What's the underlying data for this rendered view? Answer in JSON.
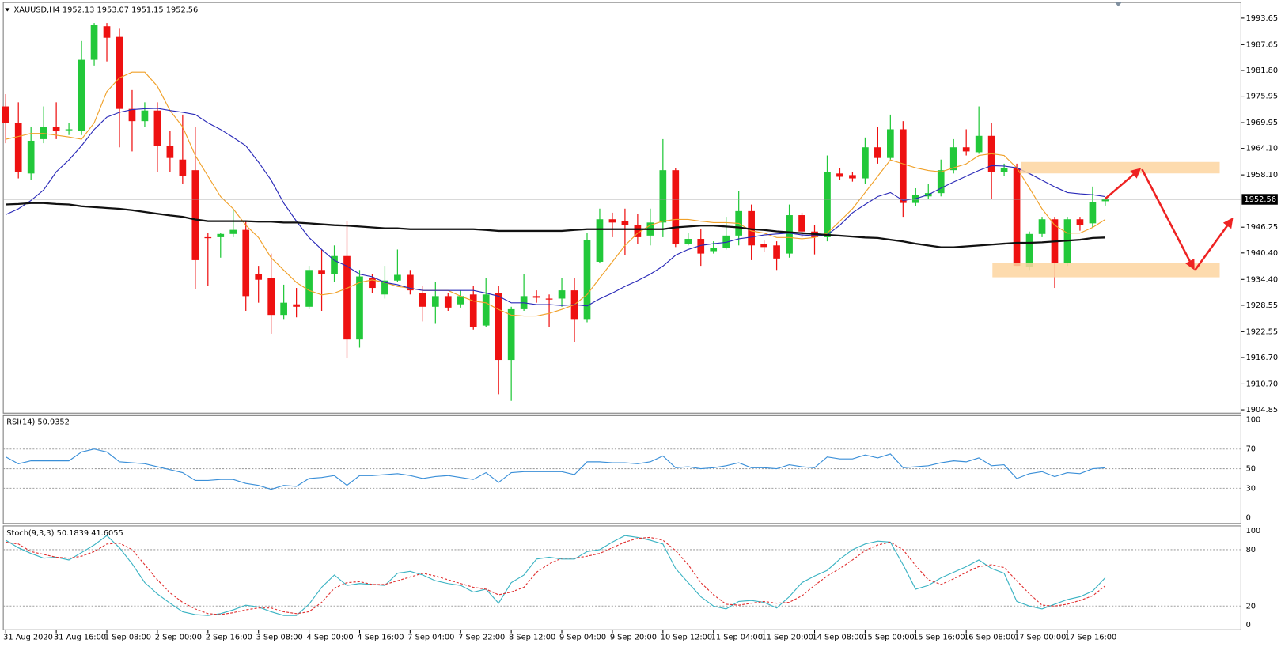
{
  "chart_data": [
    {
      "type": "candlestick",
      "symbol": "XAUUSD,H4",
      "up_color": "#22c83a",
      "down_color": "#ee1111",
      "categories": [
        "31 Aug 2020",
        null,
        null,
        null,
        "31 Aug 16:00",
        null,
        null,
        null,
        "1 Sep 08:00",
        null,
        null,
        null,
        "2 Sep 00:00",
        null,
        null,
        null,
        "2 Sep 16:00",
        null,
        null,
        null,
        "3 Sep 08:00",
        null,
        null,
        null,
        "4 Sep 00:00",
        null,
        null,
        null,
        "4 Sep 16:00",
        null,
        null,
        null,
        "7 Sep 04:00",
        null,
        null,
        null,
        "7 Sep 22:00",
        null,
        null,
        null,
        "8 Sep 12:00",
        null,
        null,
        null,
        "9 Sep 04:00",
        null,
        null,
        null,
        "9 Sep 20:00",
        null,
        null,
        null,
        "10 Sep 12:00",
        null,
        null,
        null,
        "11 Sep 04:00",
        null,
        null,
        null,
        "11 Sep 20:00",
        null,
        null,
        null,
        "14 Sep 08:00",
        null,
        null,
        null,
        "15 Sep 00:00",
        null,
        null,
        null,
        "15 Sep 16:00",
        null,
        null,
        null,
        "16 Sep 08:00",
        null,
        null,
        null,
        "17 Sep 00:00",
        null,
        null,
        null,
        "17 Sep 16:00",
        null,
        null,
        null
      ],
      "open": [
        1973.63,
        1969.92,
        1958.42,
        1966.21,
        1968.99,
        1968.44,
        1968.07,
        1984.2,
        1991.8,
        1989.39,
        1973.07,
        1970.29,
        1972.7,
        1964.73,
        1961.58,
        1959.17,
        1943.97,
        1943.97,
        1944.71,
        1945.64,
        1935.62,
        1934.7,
        1926.35,
        1928.76,
        1928.21,
        1936.55,
        1935.62,
        1939.7,
        1920.79,
        1934.7,
        1930.99,
        1934.14,
        1935.44,
        1931.36,
        1928.21,
        1930.62,
        1928.76,
        1930.99,
        1923.94,
        1931.36,
        1916.15,
        1927.65,
        1930.62,
        1930.06,
        1930.06,
        1931.92,
        1925.42,
        1938.4,
        1948.04,
        1947.67,
        1946.75,
        1944.34,
        1947.3,
        1959.17,
        1942.48,
        1943.59,
        1940.81,
        1941.55,
        1944.34,
        1949.9,
        1942.48,
        1942.11,
        1940.26,
        1948.97,
        1945.26,
        1943.97,
        1958.42,
        1958.05,
        1957.31,
        1964.36,
        1961.95,
        1968.44,
        1951.74,
        1953.23,
        1953.97,
        1959.17,
        1964.36,
        1963.25,
        1966.95,
        1958.8,
        1959.72,
        1937.29,
        1944.71,
        1948.04,
        1938.03,
        1948.04,
        1947.12,
        1952.13
      ],
      "high": [
        1976.41,
        1974.56,
        1968.99,
        1973.63,
        1974.56,
        1969.92,
        1988.46,
        1992.54,
        1992.54,
        1991.24,
        1977.34,
        1974.56,
        1974.56,
        1968.07,
        1971.77,
        1968.99,
        1944.89,
        1944.89,
        1950.45,
        1947.67,
        1937.48,
        1940.26,
        1933.21,
        1932.47,
        1937.48,
        1941.18,
        1942.11,
        1947.67,
        1936.55,
        1935.62,
        1937.48,
        1941.18,
        1936.55,
        1932.84,
        1933.77,
        1931.36,
        1931.92,
        1932.84,
        1934.7,
        1932.84,
        1928.21,
        1935.62,
        1931.92,
        1930.99,
        1934.7,
        1934.7,
        1944.89,
        1950.45,
        1949.53,
        1950.45,
        1949.16,
        1950.45,
        1966.21,
        1959.72,
        1944.89,
        1945.82,
        1943.04,
        1948.6,
        1954.53,
        1951.38,
        1943.22,
        1943.04,
        1951.38,
        1949.53,
        1946.75,
        1962.51,
        1959.72,
        1958.8,
        1966.58,
        1968.99,
        1971.77,
        1970.29,
        1955.08,
        1956.01,
        1961.58,
        1966.21,
        1968.44,
        1973.63,
        1969.92,
        1960.65,
        1960.65,
        1945.26,
        1948.6,
        1948.6,
        1948.6,
        1948.6,
        1955.46,
        1953.07
      ],
      "low": [
        1965.28,
        1957.31,
        1956.94,
        1965.28,
        1966.21,
        1967.14,
        1967.14,
        1982.9,
        1983.83,
        1964.36,
        1963.43,
        1968.99,
        1958.8,
        1958.8,
        1956.01,
        1932.29,
        1932.84,
        1939.33,
        1943.97,
        1927.28,
        1929.13,
        1922.09,
        1925.42,
        1925.8,
        1927.65,
        1927.28,
        1933.77,
        1916.53,
        1918.94,
        1931.36,
        1930.06,
        1933.77,
        1930.99,
        1924.87,
        1924.5,
        1927.28,
        1928.02,
        1923.01,
        1923.57,
        1908.37,
        1906.88,
        1927.28,
        1929.13,
        1923.57,
        1928.21,
        1920.24,
        1924.68,
        1938.03,
        1943.97,
        1939.89,
        1942.48,
        1942.11,
        1943.97,
        1941.74,
        1942.11,
        1937.48,
        1940.26,
        1941.18,
        1942.11,
        1938.77,
        1940.63,
        1936.55,
        1939.33,
        1943.97,
        1940.07,
        1943.04,
        1956.94,
        1956.57,
        1956.01,
        1960.65,
        1961.58,
        1948.6,
        1951.01,
        1952.67,
        1953.23,
        1958.42,
        1962.51,
        1962.88,
        1952.67,
        1957.87,
        1937.48,
        1936.55,
        1943.97,
        1932.47,
        1937.48,
        1945.45,
        1946.19,
        1951.15
      ],
      "close": [
        1969.92,
        1958.8,
        1965.84,
        1968.99,
        1968.07,
        1968.44,
        1984.2,
        1992.17,
        1989.2,
        1973.07,
        1970.29,
        1972.7,
        1964.73,
        1961.95,
        1957.87,
        1938.77,
        1943.78,
        1944.71,
        1945.64,
        1930.62,
        1934.32,
        1926.35,
        1929.13,
        1928.21,
        1936.55,
        1935.62,
        1939.7,
        1920.79,
        1935.07,
        1932.47,
        1934.14,
        1935.44,
        1931.92,
        1928.21,
        1930.62,
        1928.02,
        1930.62,
        1923.57,
        1930.99,
        1916.15,
        1927.65,
        1930.62,
        1930.25,
        1929.88,
        1931.92,
        1925.42,
        1943.41,
        1948.04,
        1947.3,
        1946.75,
        1943.97,
        1947.3,
        1959.17,
        1942.48,
        1943.59,
        1940.26,
        1941.55,
        1944.34,
        1949.9,
        1942.11,
        1941.74,
        1939.14,
        1948.97,
        1945.26,
        1943.97,
        1958.8,
        1957.68,
        1957.31,
        1964.36,
        1961.95,
        1968.44,
        1951.74,
        1953.6,
        1953.97,
        1959.17,
        1964.36,
        1963.43,
        1966.95,
        1958.8,
        1959.72,
        1937.48,
        1944.71,
        1948.04,
        1938.03,
        1948.04,
        1946.75,
        1951.93,
        1952.56
      ],
      "overlays": [
        {
          "color": "#f0a028",
          "values": [
            1966.2,
            1966.8,
            1967.5,
            1967.5,
            1967.1,
            1966.7,
            1966.2,
            1969.9,
            1977.0,
            1980.1,
            1981.4,
            1981.4,
            1978.2,
            1972.7,
            1969.0,
            1962.5,
            1957.8,
            1953.2,
            1950.4,
            1946.7,
            1943.9,
            1939.3,
            1936.5,
            1933.7,
            1931.9,
            1930.9,
            1931.3,
            1932.4,
            1933.7,
            1934.3,
            1933.7,
            1932.8,
            1932.4,
            1931.9,
            1931.9,
            1931.9,
            1930.6,
            1929.5,
            1929.1,
            1927.6,
            1926.3,
            1926.1,
            1926.1,
            1926.7,
            1927.6,
            1928.7,
            1931.0,
            1934.7,
            1938.4,
            1942.1,
            1944.9,
            1946.7,
            1947.6,
            1948.0,
            1948.0,
            1947.6,
            1947.3,
            1947.3,
            1947.1,
            1945.4,
            1944.9,
            1943.9,
            1943.9,
            1943.6,
            1943.9,
            1944.9,
            1947.6,
            1950.4,
            1954.1,
            1957.8,
            1961.5,
            1960.6,
            1959.7,
            1959.1,
            1958.8,
            1959.7,
            1960.6,
            1962.5,
            1962.9,
            1962.5,
            1959.7,
            1955.1,
            1950.4,
            1946.7,
            1944.9,
            1944.9,
            1946.2,
            1948.0
          ]
        },
        {
          "color": "#2a2ab8",
          "values": [
            1949.1,
            1950.4,
            1952.3,
            1954.7,
            1958.8,
            1961.5,
            1964.7,
            1968.4,
            1971.2,
            1972.3,
            1972.9,
            1973.1,
            1973.2,
            1972.7,
            1972.3,
            1971.8,
            1969.9,
            1968.4,
            1966.6,
            1964.7,
            1961.0,
            1956.9,
            1951.7,
            1947.6,
            1943.9,
            1941.2,
            1938.7,
            1937.4,
            1935.6,
            1935.0,
            1933.7,
            1933.2,
            1932.4,
            1931.9,
            1931.9,
            1931.9,
            1931.9,
            1931.9,
            1931.3,
            1930.6,
            1929.1,
            1929.1,
            1928.7,
            1928.7,
            1928.5,
            1928.7,
            1928.4,
            1930.0,
            1931.3,
            1932.8,
            1934.1,
            1935.6,
            1937.4,
            1939.9,
            1941.2,
            1942.1,
            1942.5,
            1942.8,
            1943.6,
            1944.0,
            1944.5,
            1944.7,
            1944.9,
            1944.5,
            1944.3,
            1944.5,
            1946.7,
            1949.5,
            1951.4,
            1953.2,
            1954.1,
            1952.3,
            1952.7,
            1953.6,
            1955.1,
            1956.5,
            1957.8,
            1959.1,
            1960.2,
            1960.1,
            1959.7,
            1958.4,
            1956.9,
            1955.4,
            1954.1,
            1953.8,
            1953.6,
            1953.2
          ]
        },
        {
          "color": "#111111",
          "values": [
            1951.4,
            1951.5,
            1951.7,
            1951.7,
            1951.5,
            1951.4,
            1951.0,
            1950.8,
            1950.6,
            1950.4,
            1950.1,
            1949.7,
            1949.3,
            1948.9,
            1948.6,
            1948.0,
            1947.6,
            1947.6,
            1947.6,
            1947.6,
            1947.5,
            1947.5,
            1947.3,
            1947.3,
            1947.1,
            1946.9,
            1946.7,
            1946.6,
            1946.4,
            1946.2,
            1946.0,
            1946.0,
            1945.8,
            1945.8,
            1945.8,
            1945.8,
            1945.8,
            1945.8,
            1945.6,
            1945.4,
            1945.4,
            1945.4,
            1945.4,
            1945.4,
            1945.4,
            1945.6,
            1945.8,
            1945.8,
            1945.8,
            1945.8,
            1945.8,
            1945.8,
            1945.8,
            1946.2,
            1946.4,
            1946.6,
            1946.6,
            1946.4,
            1946.2,
            1945.8,
            1945.6,
            1945.3,
            1945.1,
            1944.9,
            1944.7,
            1944.5,
            1944.3,
            1944.1,
            1943.9,
            1943.8,
            1943.4,
            1943.0,
            1942.5,
            1942.1,
            1941.7,
            1941.7,
            1941.9,
            1942.1,
            1942.3,
            1942.5,
            1942.7,
            1942.7,
            1942.8,
            1943.0,
            1943.2,
            1943.4,
            1943.8,
            1943.9
          ]
        }
      ],
      "ylim": [
        1904.1,
        1997.2
      ],
      "yticks": [
        1993.65,
        1987.65,
        {
          "value": 1981.8,
          "label": "1981.80"
        },
        1975.95,
        1969.95,
        {
          "value": 1964.1,
          "label": "1964.10"
        },
        {
          "value": 1958.1,
          "label": "1958.10"
        },
        1946.25,
        {
          "value": 1940.4,
          "label": "1940.40"
        },
        {
          "value": 1934.4,
          "label": "1934.40"
        },
        1928.55,
        1922.55,
        {
          "value": 1916.7,
          "label": "1916.70"
        },
        {
          "value": 1910.7,
          "label": "1910.70"
        },
        1904.85
      ]
    },
    {
      "type": "line",
      "title": "RSI(14)",
      "series": [
        {
          "color": "#3a8fd8",
          "line_style": "solid",
          "values": [
            62,
            55,
            58,
            58,
            58,
            58,
            67,
            70,
            67,
            57,
            56,
            55,
            52,
            49,
            46,
            38,
            38,
            39,
            39,
            35,
            33,
            29,
            33,
            32,
            40,
            41,
            43,
            33,
            43,
            43,
            44,
            45,
            43,
            40,
            42,
            43,
            41,
            39,
            46,
            36,
            46,
            47,
            47,
            47,
            47,
            44,
            57,
            57,
            56,
            56,
            55,
            57,
            63,
            51,
            52,
            50,
            51,
            53,
            56,
            51,
            51,
            50,
            54,
            52,
            51,
            62,
            60,
            60,
            64,
            61,
            65,
            51,
            52,
            53,
            56,
            58,
            57,
            61,
            53,
            54,
            40,
            45,
            47,
            42,
            46,
            45,
            50,
            50.9352
          ]
        }
      ],
      "ylim": [
        0,
        100
      ],
      "yticks": [
        100,
        70,
        50,
        30,
        0
      ]
    },
    {
      "type": "line",
      "title": "Stoch(9,3,3)",
      "series": [
        {
          "color": "#3bb3c3",
          "line_style": "solid",
          "values": [
            90,
            82,
            76,
            71,
            72,
            69,
            77,
            85,
            95,
            82,
            65,
            45,
            33,
            23,
            14,
            11,
            10,
            12,
            16,
            21,
            19,
            14,
            10,
            10,
            22,
            40,
            53,
            42,
            44,
            43,
            42,
            55,
            57,
            53,
            47,
            44,
            42,
            35,
            38,
            23,
            45,
            53,
            70,
            72,
            70,
            70,
            78,
            80,
            88,
            95,
            93,
            90,
            86,
            60,
            45,
            30,
            20,
            17,
            25,
            26,
            24,
            18,
            30,
            45,
            52,
            58,
            70,
            80,
            86,
            89,
            88,
            64,
            38,
            42,
            50,
            56,
            62,
            69,
            60,
            55,
            25,
            20,
            17,
            22,
            27,
            30,
            36,
            50.1839
          ]
        },
        {
          "color": "#e03030",
          "line_style": "dashed",
          "values": [
            88,
            86,
            78,
            75,
            72,
            71,
            73,
            78,
            86,
            87,
            80,
            64,
            48,
            34,
            24,
            17,
            12,
            11,
            13,
            16,
            18,
            18,
            14,
            12,
            14,
            24,
            39,
            45,
            46,
            43,
            43,
            47,
            51,
            55,
            52,
            48,
            44,
            40,
            38,
            32,
            35,
            40,
            56,
            65,
            71,
            71,
            73,
            76,
            82,
            88,
            92,
            93,
            90,
            79,
            64,
            45,
            32,
            22,
            21,
            23,
            25,
            23,
            24,
            31,
            42,
            52,
            60,
            69,
            79,
            85,
            88,
            80,
            63,
            48,
            43,
            49,
            56,
            62,
            64,
            61,
            47,
            33,
            21,
            20,
            22,
            26,
            31,
            41.6055
          ]
        }
      ],
      "ylim": [
        0,
        100
      ],
      "yticks": [
        100,
        80,
        20,
        0
      ]
    }
  ]
}
